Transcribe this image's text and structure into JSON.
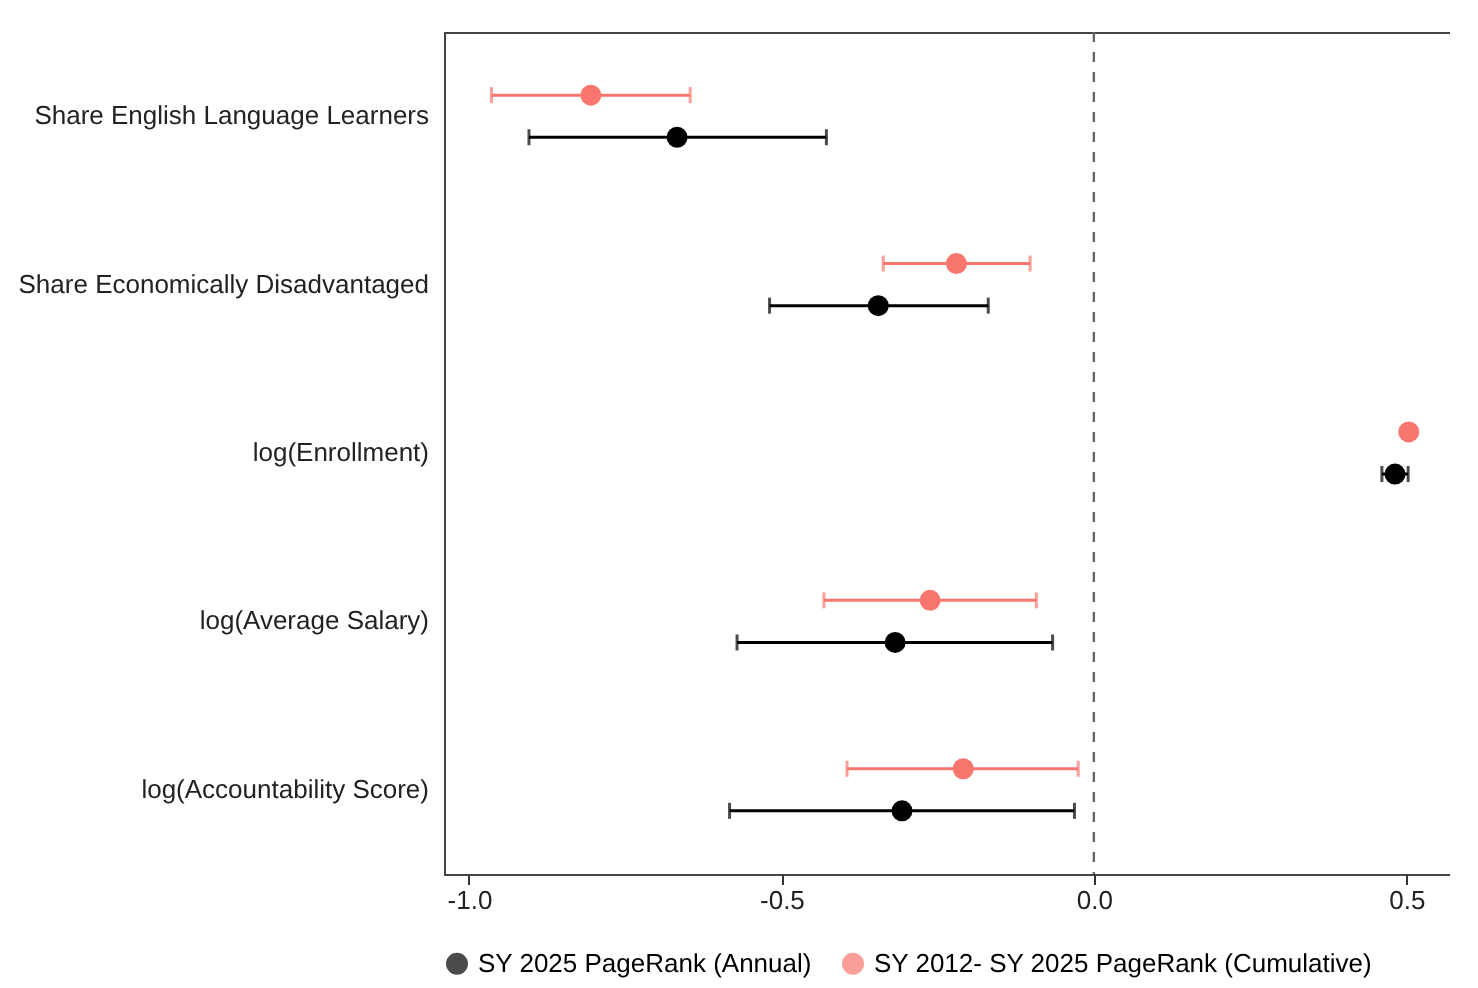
{
  "chart_data": {
    "type": "scatter",
    "categories": [
      "Share English Language Learners",
      "Share Economically Disadvantaged",
      "log(Enrollment)",
      "log(Average Salary)",
      "log(Accountability Score)"
    ],
    "orientation": "horizontal",
    "series": [
      {
        "name": "SY 2025 PageRank (Annual)",
        "color": "#000000",
        "values": [
          -0.667,
          -0.345,
          0.482,
          -0.318,
          -0.307
        ],
        "errors": [
          [
            -0.904,
            -0.428
          ],
          [
            -0.519,
            -0.169
          ],
          [
            0.461,
            0.503
          ],
          [
            -0.571,
            -0.066
          ],
          [
            -0.583,
            -0.031
          ]
        ]
      },
      {
        "name": "SY 2012- SY 2025 PageRank (Cumulative)",
        "color": "#f8766d",
        "values": [
          -0.805,
          -0.22,
          0.504,
          -0.262,
          -0.209
        ],
        "errors": [
          [
            -0.964,
            -0.646
          ],
          [
            -0.337,
            -0.102
          ],
          null,
          [
            -0.432,
            -0.092
          ],
          [
            -0.395,
            -0.025
          ]
        ]
      }
    ],
    "xlim": [
      -1.04,
      0.57
    ],
    "xticks": [
      {
        "value": -1,
        "label": "-1.0"
      },
      {
        "value": -0.5,
        "label": "-0.5"
      },
      {
        "value": 0,
        "label": "0.0"
      },
      {
        "value": 0.5,
        "label": "0.5"
      }
    ],
    "ref_lines": [
      {
        "axis": "x",
        "value": 0,
        "line_style": "dashed",
        "color": "#666666"
      }
    ],
    "grid": false,
    "legend": "bottom",
    "marker": "circle"
  }
}
